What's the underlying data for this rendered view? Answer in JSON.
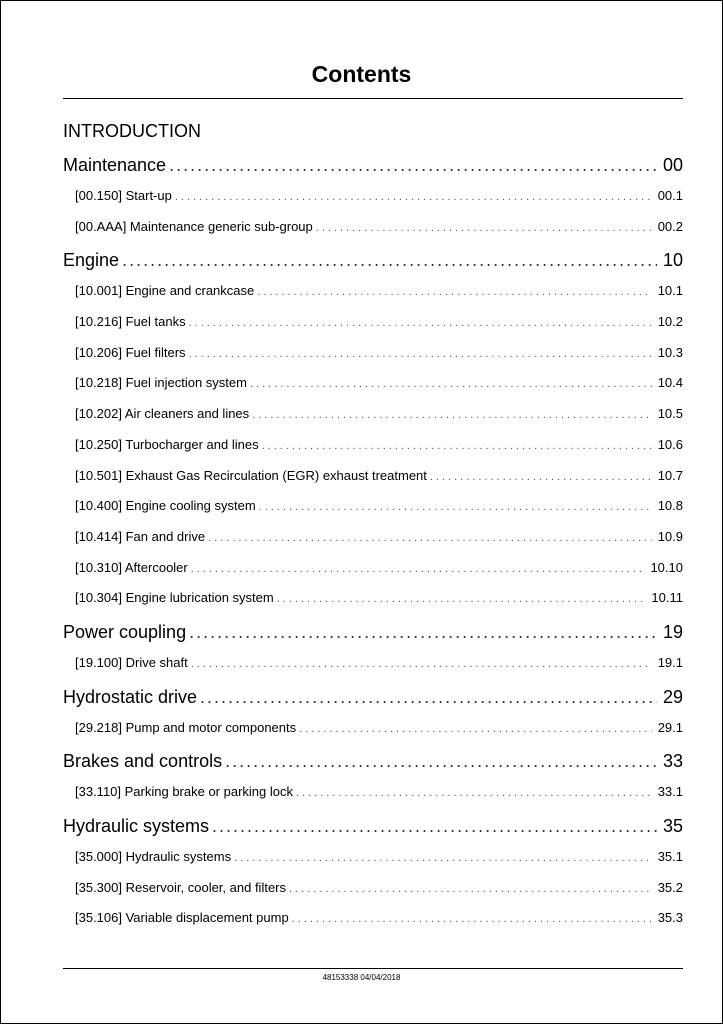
{
  "title": "Contents",
  "intro": "INTRODUCTION",
  "sections": [
    {
      "label": "Maintenance",
      "page": "00",
      "items": [
        {
          "label": "[00.150] Start-up",
          "page": "00.1"
        },
        {
          "label": "[00.AAA] Maintenance generic sub-group",
          "page": "00.2"
        }
      ]
    },
    {
      "label": "Engine",
      "page": "10",
      "items": [
        {
          "label": "[10.001] Engine and crankcase",
          "page": "10.1"
        },
        {
          "label": "[10.216] Fuel tanks",
          "page": "10.2"
        },
        {
          "label": "[10.206] Fuel filters",
          "page": "10.3"
        },
        {
          "label": "[10.218] Fuel injection system",
          "page": "10.4"
        },
        {
          "label": "[10.202] Air cleaners and lines",
          "page": "10.5"
        },
        {
          "label": "[10.250] Turbocharger and lines",
          "page": "10.6"
        },
        {
          "label": "[10.501] Exhaust Gas Recirculation (EGR) exhaust treatment",
          "page": "10.7"
        },
        {
          "label": "[10.400] Engine cooling system",
          "page": "10.8"
        },
        {
          "label": "[10.414] Fan and drive",
          "page": "10.9"
        },
        {
          "label": "[10.310] Aftercooler",
          "page": "10.10"
        },
        {
          "label": "[10.304] Engine lubrication system",
          "page": "10.11"
        }
      ]
    },
    {
      "label": "Power coupling",
      "page": "19",
      "items": [
        {
          "label": "[19.100] Drive shaft",
          "page": "19.1"
        }
      ]
    },
    {
      "label": "Hydrostatic drive",
      "page": "29",
      "items": [
        {
          "label": "[29.218] Pump and motor components",
          "page": "29.1"
        }
      ]
    },
    {
      "label": "Brakes and controls",
      "page": "33",
      "items": [
        {
          "label": "[33.110] Parking brake or parking lock",
          "page": "33.1"
        }
      ]
    },
    {
      "label": "Hydraulic systems",
      "page": "35",
      "items": [
        {
          "label": "[35.000] Hydraulic systems",
          "page": "35.1"
        },
        {
          "label": "[35.300] Reservoir, cooler, and filters",
          "page": "35.2"
        },
        {
          "label": "[35.106] Variable displacement pump",
          "page": "35.3"
        }
      ]
    }
  ],
  "footer": "48153338 04/04/2018"
}
